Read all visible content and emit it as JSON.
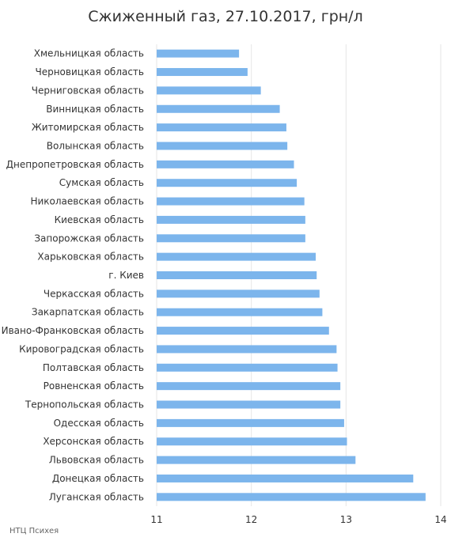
{
  "chart_data": {
    "type": "bar",
    "orientation": "horizontal",
    "title": "Сжиженный газ, 27.10.2017, грн/л",
    "xlabel": "",
    "ylabel": "",
    "xlim": [
      11,
      14
    ],
    "x_ticks": [
      "11",
      "12",
      "13",
      "14"
    ],
    "grid": "vertical",
    "legend": "none",
    "bar_color": "#7cb5ec",
    "categories": [
      "Хмельницкая область",
      "Черновицкая область",
      "Черниговская область",
      "Винницкая область",
      "Житомирская область",
      "Волынская область",
      "Днепропетровская область",
      "Сумская область",
      "Николаевская область",
      "Киевская область",
      "Запорожская область",
      "Харьковская область",
      "г. Киев",
      "Черкасская область",
      "Закарпатская область",
      "Ивано-Франковская область",
      "Кировоградская область",
      "Полтавская область",
      "Ровненская область",
      "Тернопольская область",
      "Одесская область",
      "Херсонская область",
      "Львовская область",
      "Донецкая область",
      "Луганская область"
    ],
    "values": [
      11.87,
      11.96,
      12.1,
      12.3,
      12.37,
      12.38,
      12.45,
      12.48,
      12.56,
      12.57,
      12.57,
      12.68,
      12.69,
      12.72,
      12.75,
      12.82,
      12.9,
      12.91,
      12.94,
      12.94,
      12.98,
      13.01,
      13.1,
      13.71,
      13.84
    ]
  },
  "credit": "НТЦ Психея"
}
